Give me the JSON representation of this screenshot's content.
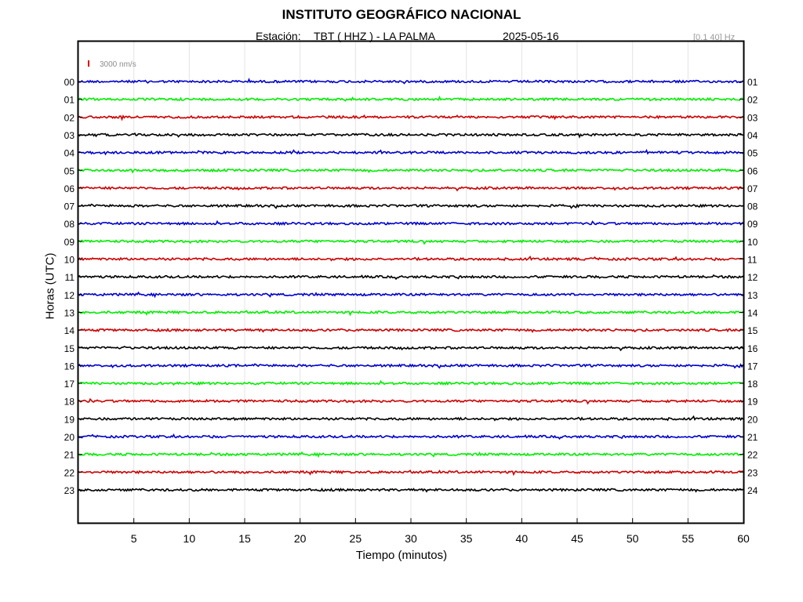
{
  "header": {
    "title": "INSTITUTO GEOGRÁFICO NACIONAL",
    "station_label": "Estación:",
    "station_value": "TBT ( HHZ ) - LA PALMA",
    "date": "2025-05-16",
    "filter": "[0.1 40] Hz"
  },
  "colors": {
    "trace_cycle": [
      "#0000cc",
      "#00ee00",
      "#cc0000",
      "#000000"
    ],
    "grid": "#e4e4e4",
    "scale_bar": "#dd0000"
  },
  "chart_data": {
    "type": "line",
    "title": "INSTITUTO GEOGRÁFICO NACIONAL",
    "xlabel": "Tiempo (minutos)",
    "ylabel": "Horas (UTC)",
    "xlim": [
      0,
      60
    ],
    "x_ticks": [
      "5",
      "10",
      "15",
      "20",
      "25",
      "30",
      "35",
      "40",
      "45",
      "50",
      "55",
      "60"
    ],
    "left_ticks": [
      "00",
      "01",
      "02",
      "03",
      "04",
      "05",
      "06",
      "07",
      "08",
      "09",
      "10",
      "11",
      "12",
      "13",
      "14",
      "15",
      "16",
      "17",
      "18",
      "19",
      "20",
      "21",
      "22",
      "23"
    ],
    "right_ticks": [
      "01",
      "02",
      "03",
      "04",
      "05",
      "06",
      "07",
      "08",
      "09",
      "10",
      "11",
      "12",
      "13",
      "14",
      "15",
      "16",
      "17",
      "18",
      "19",
      "20",
      "21",
      "22",
      "23",
      "24"
    ],
    "scale_bar_label": "3000 nm/s",
    "grid": true,
    "series": [
      {
        "hour": "00",
        "color": "#0000cc"
      },
      {
        "hour": "01",
        "color": "#00ee00"
      },
      {
        "hour": "02",
        "color": "#cc0000"
      },
      {
        "hour": "03",
        "color": "#000000"
      },
      {
        "hour": "04",
        "color": "#0000cc"
      },
      {
        "hour": "05",
        "color": "#00ee00"
      },
      {
        "hour": "06",
        "color": "#cc0000"
      },
      {
        "hour": "07",
        "color": "#000000"
      },
      {
        "hour": "08",
        "color": "#0000cc"
      },
      {
        "hour": "09",
        "color": "#00ee00"
      },
      {
        "hour": "10",
        "color": "#cc0000"
      },
      {
        "hour": "11",
        "color": "#000000"
      },
      {
        "hour": "12",
        "color": "#0000cc"
      },
      {
        "hour": "13",
        "color": "#00ee00"
      },
      {
        "hour": "14",
        "color": "#cc0000"
      },
      {
        "hour": "15",
        "color": "#000000"
      },
      {
        "hour": "16",
        "color": "#0000cc"
      },
      {
        "hour": "17",
        "color": "#00ee00"
      },
      {
        "hour": "18",
        "color": "#cc0000"
      },
      {
        "hour": "19",
        "color": "#000000"
      },
      {
        "hour": "20",
        "color": "#0000cc"
      },
      {
        "hour": "21",
        "color": "#00ee00"
      },
      {
        "hour": "22",
        "color": "#cc0000"
      },
      {
        "hour": "23",
        "color": "#000000"
      }
    ]
  }
}
